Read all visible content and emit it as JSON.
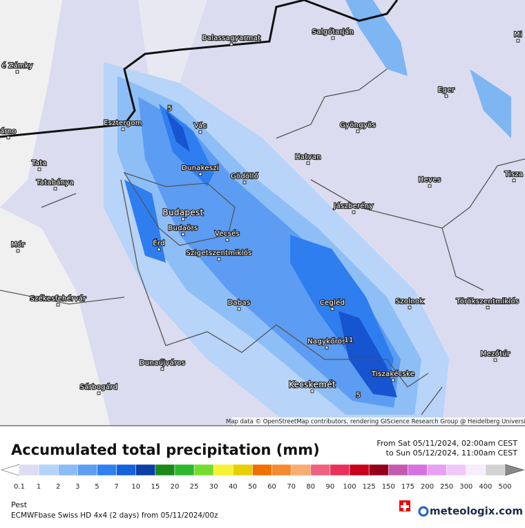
{
  "map": {
    "places": [
      "Balassagyarmat",
      "Salgótarján",
      "Mi",
      "é Zámky",
      "Eger",
      "Esztergom",
      "Vác",
      "Gyöngyös",
      "árno",
      "Tata",
      "Dunakeszi",
      "Gödöllő",
      "Hatvan",
      "Tisza",
      "Tatabánya",
      "Heves",
      "Jászberény",
      "Budapest",
      "Budaörs",
      "Vecsés",
      "Érd",
      "Mór",
      "Szigetszentmiklós",
      "Székesfehérvár",
      "Cegléd",
      "Szolnok",
      "Törökszentmiklós",
      "Dabas",
      "Nagykőrös",
      "Mezőtúr",
      "Dunaújváros",
      "Tiszakécske",
      "Kecskemét",
      "Sárbogárd"
    ],
    "contour_labels": [
      "5",
      "11",
      "5"
    ],
    "attribution": "Map data © OpenStreetMap contributors, rendering GIScience Research Group @ Heidelberg University"
  },
  "legend": {
    "title": "Accumulated total precipitation (mm)",
    "period": [
      "From Sat 05/11/2024, 02:00am CEST",
      "to Sun 05/12/2024, 11:00am CEST"
    ],
    "ticks": [
      0.1,
      1,
      2,
      3,
      5,
      7,
      10,
      15,
      20,
      25,
      30,
      40,
      50,
      60,
      70,
      80,
      90,
      100,
      125,
      150,
      175,
      200,
      250,
      300,
      400,
      500
    ],
    "colors": [
      "#dcdcf2",
      "#b6d4fa",
      "#8cbcf6",
      "#5e9ef2",
      "#3080ee",
      "#1462dc",
      "#0a3fa6",
      "#1b8a1b",
      "#2eb82e",
      "#74dc30",
      "#f4f432",
      "#e6d000",
      "#f07000",
      "#f58a30",
      "#f7ac70",
      "#f06080",
      "#e8305a",
      "#c8001a",
      "#94001a",
      "#c45aae",
      "#d672e0",
      "#e6a2f0",
      "#f0c8f8",
      "#f6eefc",
      "#d2d2d2"
    ]
  },
  "footer": {
    "region": "Pest",
    "model": "ECMWFbase Swiss HD 4x4 (2 days) from  05/11/2024/00z",
    "brand": "meteologix.com"
  }
}
